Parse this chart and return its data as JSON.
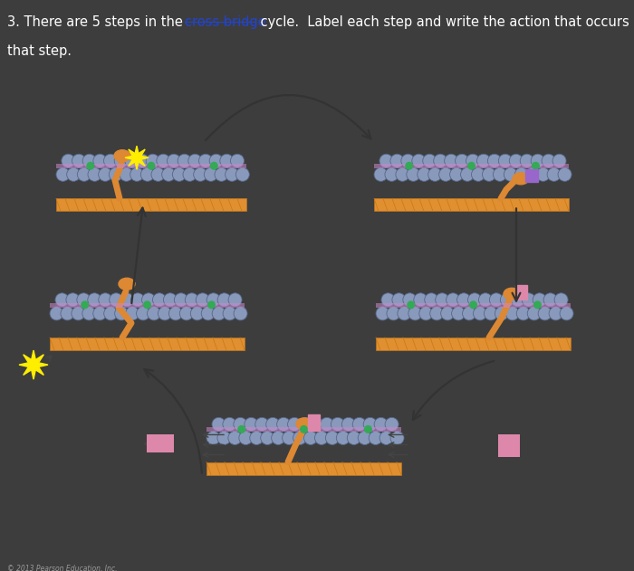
{
  "bg_header": "#3d3d3d",
  "bg_diagram": "#dedad2",
  "link_color": "#2244cc",
  "line1_a": "3. There are 5 steps in the ",
  "line1_link": "cross bridge",
  "line1_b": " cycle.  Label each step and write the action that occurs at",
  "line2": "that step.",
  "actin_ball_color": "#8899bb",
  "actin_ball_edge": "#556688",
  "troponin_color": "#33aa55",
  "tropomyosin_color": "#cc88cc",
  "myosin_orange": "#dd8833",
  "track_orange": "#e09030",
  "atp_yellow": "#ffee00",
  "pink_box": "#dd88aa",
  "purple_box": "#9966cc",
  "arrow_color": "#333333",
  "copyright": "© 2013 Pearson Education, Inc.",
  "copyright_color": "#999999"
}
